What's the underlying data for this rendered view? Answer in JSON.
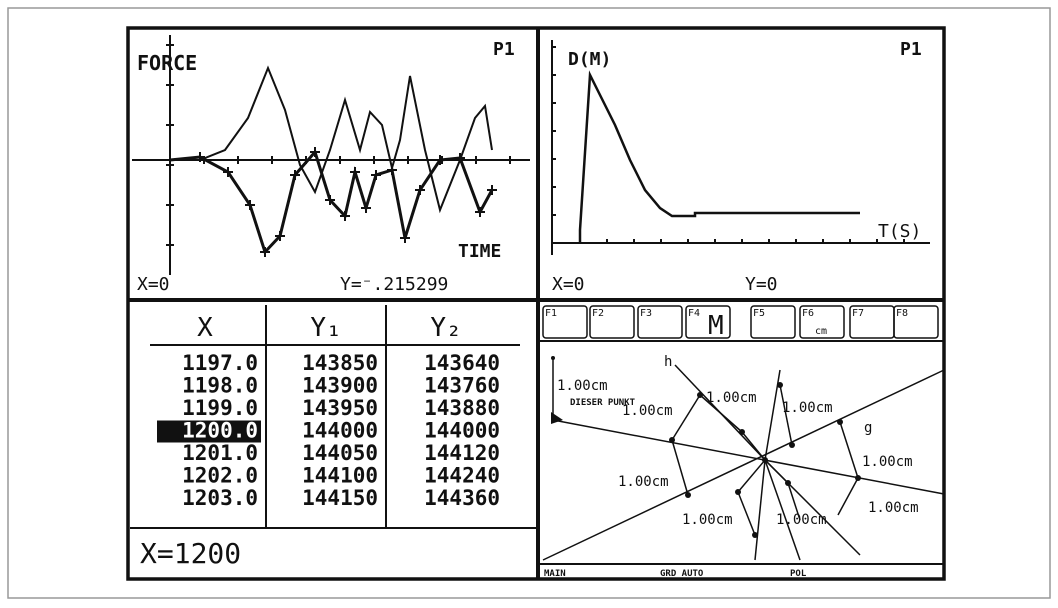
{
  "graph_force": {
    "y_label": "FORCE",
    "plot_tag": "P1",
    "x_label": "TIME",
    "x_readout": "X=0",
    "y_readout": "Y=⁻.215299"
  },
  "graph_distance": {
    "y_label": "D(M)",
    "plot_tag": "P1",
    "x_label": "T(S)",
    "x_readout": "X=0",
    "y_readout": "Y=0"
  },
  "table": {
    "columns": [
      "X",
      "Y₁",
      "Y₂"
    ],
    "rows": [
      [
        "1197.0",
        "143850",
        "143640"
      ],
      [
        "1198.0",
        "143900",
        "143760"
      ],
      [
        "1199.0",
        "143950",
        "143880"
      ],
      [
        "1200.0",
        "144000",
        "144000"
      ],
      [
        "1201.0",
        "144050",
        "144120"
      ],
      [
        "1202.0",
        "144100",
        "144240"
      ],
      [
        "1203.0",
        "144150",
        "144360"
      ]
    ],
    "entry": "X=1200"
  },
  "geometry": {
    "toolbar": [
      "F1",
      "F2",
      "F3",
      "F4",
      "M",
      "F5",
      "F6",
      "cm",
      "F7",
      "F8"
    ],
    "labels": [
      "h",
      "1.00cm",
      "DIESER PUNKT",
      "1.00cm",
      "1.00cm",
      "1.00cm",
      "g",
      "1.00cm",
      "1.00cm",
      "1.00cm",
      "1.00cm",
      "1.00cm"
    ],
    "status": [
      "MAIN",
      "GRD AUTO",
      "POL"
    ]
  }
}
